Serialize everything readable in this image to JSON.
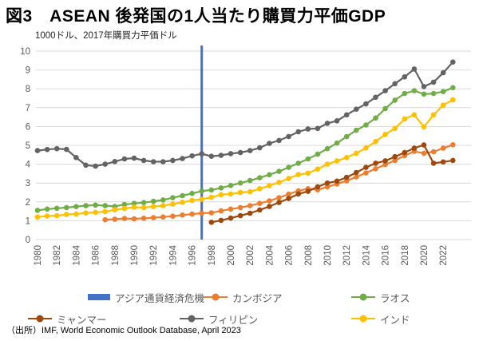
{
  "title": "図3　ASEAN 後発国の1人当たり購買力平価GDP",
  "y_axis_note": "1000ドル、2017年購買力平価ドル",
  "source": "（出所）IMF, World Economic Outlook Database, April 2023",
  "chart_data": {
    "type": "line",
    "title": "図3　ASEAN 後発国の1人当たり購買力平価GDP",
    "ylabel": "1000ドル、2017年購買力平価ドル",
    "xlabel": "",
    "ylim": [
      0,
      10
    ],
    "y_ticks": [
      0,
      1,
      2,
      3,
      4,
      5,
      6,
      7,
      8,
      9,
      10
    ],
    "x_range_years": [
      1980,
      2023
    ],
    "x_tick_years": [
      1980,
      1982,
      1984,
      1986,
      1988,
      1990,
      1992,
      1994,
      1996,
      1998,
      2000,
      2002,
      2004,
      2006,
      2008,
      2010,
      2012,
      2014,
      2016,
      2018,
      2020,
      2022
    ],
    "grid": true,
    "legend_position": "bottom",
    "grid_color": "#D9D9D9",
    "tick_label_color": "#595959",
    "event_line": {
      "label": "アジア通貨経済危機",
      "year": 1997,
      "color": "#4472C4"
    },
    "series": [
      {
        "name": "カンボジア",
        "color": "#ED7D31",
        "start_year": 1987,
        "values": [
          1.05,
          1.08,
          1.12,
          1.1,
          1.13,
          1.16,
          1.2,
          1.24,
          1.3,
          1.35,
          1.4,
          1.42,
          1.52,
          1.62,
          1.7,
          1.8,
          1.92,
          2.05,
          2.22,
          2.41,
          2.58,
          2.7,
          2.64,
          2.8,
          2.95,
          3.12,
          3.32,
          3.54,
          3.76,
          3.98,
          4.2,
          4.45,
          4.68,
          4.58,
          4.66,
          4.85,
          5.03
        ]
      },
      {
        "name": "ラオス",
        "color": "#70AD47",
        "start_year": 1980,
        "values": [
          1.55,
          1.62,
          1.66,
          1.7,
          1.75,
          1.8,
          1.83,
          1.8,
          1.76,
          1.86,
          1.92,
          1.96,
          2.03,
          2.1,
          2.22,
          2.33,
          2.45,
          2.57,
          2.63,
          2.74,
          2.87,
          3.0,
          3.13,
          3.28,
          3.44,
          3.62,
          3.83,
          4.05,
          4.28,
          4.53,
          4.82,
          5.12,
          5.46,
          5.8,
          6.08,
          6.45,
          6.95,
          7.4,
          7.75,
          7.9,
          7.72,
          7.75,
          7.85,
          8.06
        ]
      },
      {
        "name": "ミャンマー",
        "color": "#9E480E",
        "start_year": 1998,
        "values": [
          0.92,
          1.02,
          1.14,
          1.27,
          1.4,
          1.57,
          1.76,
          1.97,
          2.18,
          2.42,
          2.56,
          2.8,
          3.0,
          3.1,
          3.3,
          3.56,
          3.83,
          4.05,
          4.18,
          4.4,
          4.62,
          4.85,
          5.02,
          4.05,
          4.12,
          4.2
        ]
      },
      {
        "name": "フィリピン",
        "color": "#636363",
        "start_year": 1980,
        "values": [
          4.72,
          4.78,
          4.82,
          4.79,
          4.35,
          3.95,
          3.9,
          4.0,
          4.14,
          4.28,
          4.32,
          4.2,
          4.13,
          4.13,
          4.2,
          4.3,
          4.44,
          4.55,
          4.42,
          4.47,
          4.56,
          4.62,
          4.72,
          4.87,
          5.1,
          5.26,
          5.47,
          5.72,
          5.87,
          5.9,
          6.17,
          6.3,
          6.62,
          6.92,
          7.2,
          7.55,
          7.9,
          8.27,
          8.63,
          9.05,
          8.12,
          8.35,
          8.85,
          9.42
        ]
      },
      {
        "name": "インド",
        "color": "#FFC000",
        "start_year": 1980,
        "values": [
          1.2,
          1.25,
          1.27,
          1.33,
          1.36,
          1.41,
          1.45,
          1.48,
          1.58,
          1.65,
          1.72,
          1.7,
          1.75,
          1.8,
          1.88,
          1.98,
          2.08,
          2.14,
          2.24,
          2.38,
          2.42,
          2.5,
          2.54,
          2.7,
          2.86,
          3.04,
          3.24,
          3.45,
          3.52,
          3.74,
          4.0,
          4.18,
          4.35,
          4.58,
          4.86,
          5.2,
          5.58,
          5.9,
          6.4,
          6.62,
          5.98,
          6.62,
          7.13,
          7.41
        ]
      }
    ]
  }
}
